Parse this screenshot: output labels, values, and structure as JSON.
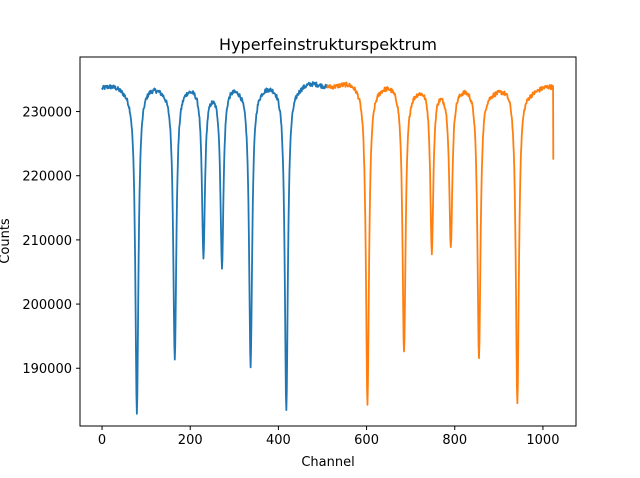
{
  "chart_data": {
    "type": "line",
    "title": "Hyperfeinstrukturspektrum",
    "xlabel": "Channel",
    "ylabel": "Counts",
    "xlim": [
      -50,
      1075
    ],
    "ylim": [
      181000,
      238500
    ],
    "xticks": [
      0,
      200,
      400,
      600,
      800,
      1000
    ],
    "yticks": [
      190000,
      200000,
      210000,
      220000,
      230000
    ],
    "grid": false,
    "legend": "none",
    "baseline": 233800,
    "series": [
      {
        "color": "#1f77b4",
        "x_range": [
          0,
          511
        ],
        "start_level": 233800,
        "end_level": 234300,
        "dips": [
          {
            "x": 79,
            "y": 183200
          },
          {
            "x": 165,
            "y": 191500
          },
          {
            "x": 230,
            "y": 207800
          },
          {
            "x": 272,
            "y": 206300
          },
          {
            "x": 337,
            "y": 190700
          },
          {
            "x": 418,
            "y": 183600
          }
        ]
      },
      {
        "color": "#ff7f0e",
        "x_range": [
          511,
          1023
        ],
        "start_level": 234400,
        "end_level": 233700,
        "end_value": 222500,
        "dips": [
          {
            "x": 602,
            "y": 184600
          },
          {
            "x": 685,
            "y": 192600
          },
          {
            "x": 748,
            "y": 208600
          },
          {
            "x": 791,
            "y": 209300
          },
          {
            "x": 855,
            "y": 191800
          },
          {
            "x": 942,
            "y": 184600
          }
        ]
      }
    ]
  }
}
